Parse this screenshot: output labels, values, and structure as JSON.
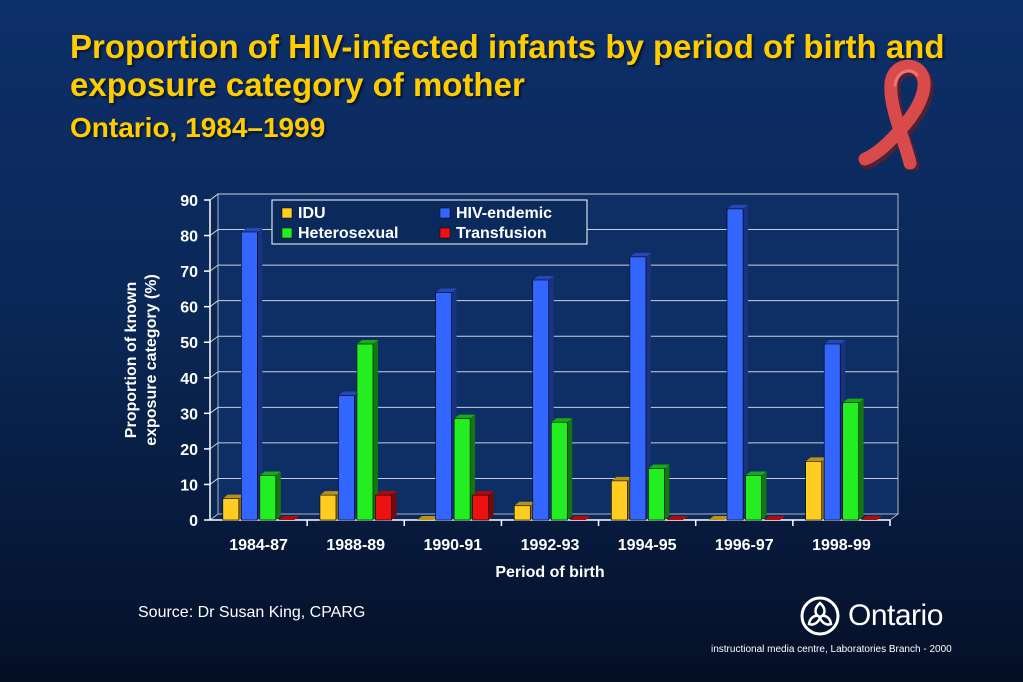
{
  "title": "Proportion of HIV-infected infants by period of birth and exposure category of mother",
  "subtitle": "Ontario, 1984–1999",
  "source": "Source: Dr Susan King, CPARG",
  "brand": {
    "name": "Ontario"
  },
  "footer": "instructional media centre, Laboratories Branch - 2000",
  "colors": {
    "accent": "#ffcc00",
    "background": "#0b2a5e",
    "ribbon": "#d94a4a"
  },
  "icons": {
    "ribbon": "red-ribbon-icon",
    "logo": "ontario-trillium-icon"
  },
  "chart_data": {
    "type": "bar",
    "categories": [
      "1984-87",
      "1988-89",
      "1990-91",
      "1992-93",
      "1994-95",
      "1996-97",
      "1998-99"
    ],
    "series": [
      {
        "name": "IDU",
        "color": "#ffcc22",
        "values": [
          6,
          7,
          0,
          4,
          11,
          0,
          16.5
        ]
      },
      {
        "name": "HIV-endemic",
        "color": "#3366ff",
        "values": [
          81,
          35,
          64,
          67.5,
          74,
          87.5,
          49.5
        ]
      },
      {
        "name": "Heterosexual",
        "color": "#22ee22",
        "values": [
          12.5,
          49.5,
          28.5,
          27.5,
          14.5,
          12.5,
          33
        ]
      },
      {
        "name": "Transfusion",
        "color": "#ee1111",
        "values": [
          0,
          7,
          7,
          0,
          0,
          0,
          0
        ]
      }
    ],
    "xlabel": "Period of birth",
    "ylabel": [
      "Proportion of known",
      "exposure category (%)"
    ],
    "ylim": [
      0,
      90
    ],
    "yticks": [
      0,
      10,
      20,
      30,
      40,
      50,
      60,
      70,
      80,
      90
    ],
    "grid": true,
    "legend": "top-left"
  }
}
